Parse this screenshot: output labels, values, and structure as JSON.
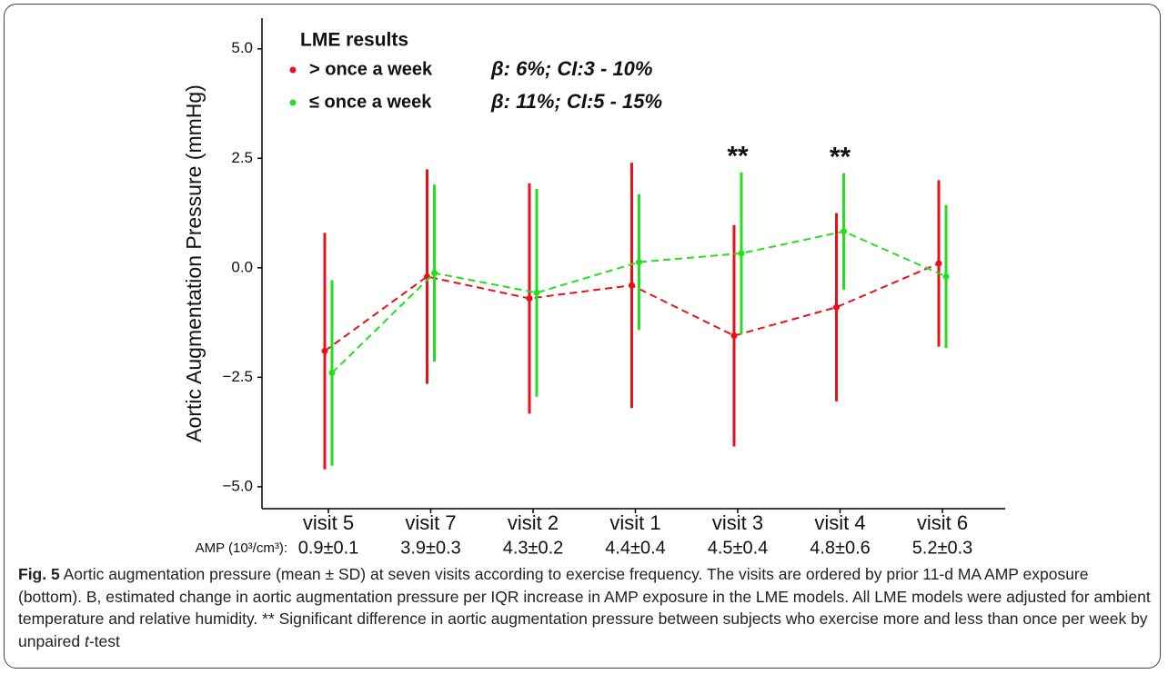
{
  "chart_data": {
    "type": "errorbar-line",
    "ylabel": "Aortic Augmentation Pressure (mmHg)",
    "categories": [
      "visit 5",
      "visit 7",
      "visit 2",
      "visit 1",
      "visit 3",
      "visit 4",
      "visit 6"
    ],
    "sublabel_title": "AMP (10³/cm³):",
    "sublabels": [
      "0.9±0.1",
      "3.9±0.3",
      "4.3±0.2",
      "4.4±0.4",
      "4.5±0.4",
      "4.8±0.6",
      "5.2±0.3"
    ],
    "legend_title": "LME results",
    "series": [
      {
        "name": "> once a week",
        "note": "β: 6%; CI:3 - 10%",
        "color": "#e8101a",
        "values": [
          -1.9,
          -0.2,
          -0.7,
          -0.4,
          -1.55,
          -0.9,
          0.1
        ],
        "errors": [
          2.7,
          2.45,
          2.63,
          2.8,
          2.53,
          2.15,
          1.9
        ]
      },
      {
        "name": "≤ once a week",
        "note": "β: 11%; CI:5 - 15%",
        "color": "#22e01c",
        "values": [
          -2.4,
          -0.12,
          -0.57,
          0.13,
          0.33,
          0.83,
          -0.2
        ],
        "errors": [
          2.12,
          2.02,
          2.37,
          1.55,
          1.85,
          1.33,
          1.63
        ]
      }
    ],
    "annotations": [
      {
        "text": "**",
        "x": "visit 3"
      },
      {
        "text": "**",
        "x": "visit 4"
      }
    ],
    "ylim": [
      -5.5,
      5.7
    ],
    "yticks": [
      {
        "value": 5,
        "label": "5.0"
      },
      {
        "value": 2.5,
        "label": "2.5"
      },
      {
        "value": 0,
        "label": "0.0"
      },
      {
        "value": -2.5,
        "label": "−2.5"
      },
      {
        "value": -5,
        "label": "−5.0"
      }
    ]
  },
  "caption": {
    "label": "Fig. 5",
    "text": "Aortic augmentation pressure (mean ± SD) at seven visits according to exercise frequency. The visits are ordered by prior 11-d MA AMP exposure (bottom). Β, estimated change in aortic augmentation pressure per IQR increase in AMP exposure in the LME models. All LME models were adjusted for ambient temperature and relative humidity. ** Significant difference in aortic augmentation pressure between subjects who exercise more and less than once per week by unpaired ",
    "italic": "t",
    "tail": "-test"
  }
}
